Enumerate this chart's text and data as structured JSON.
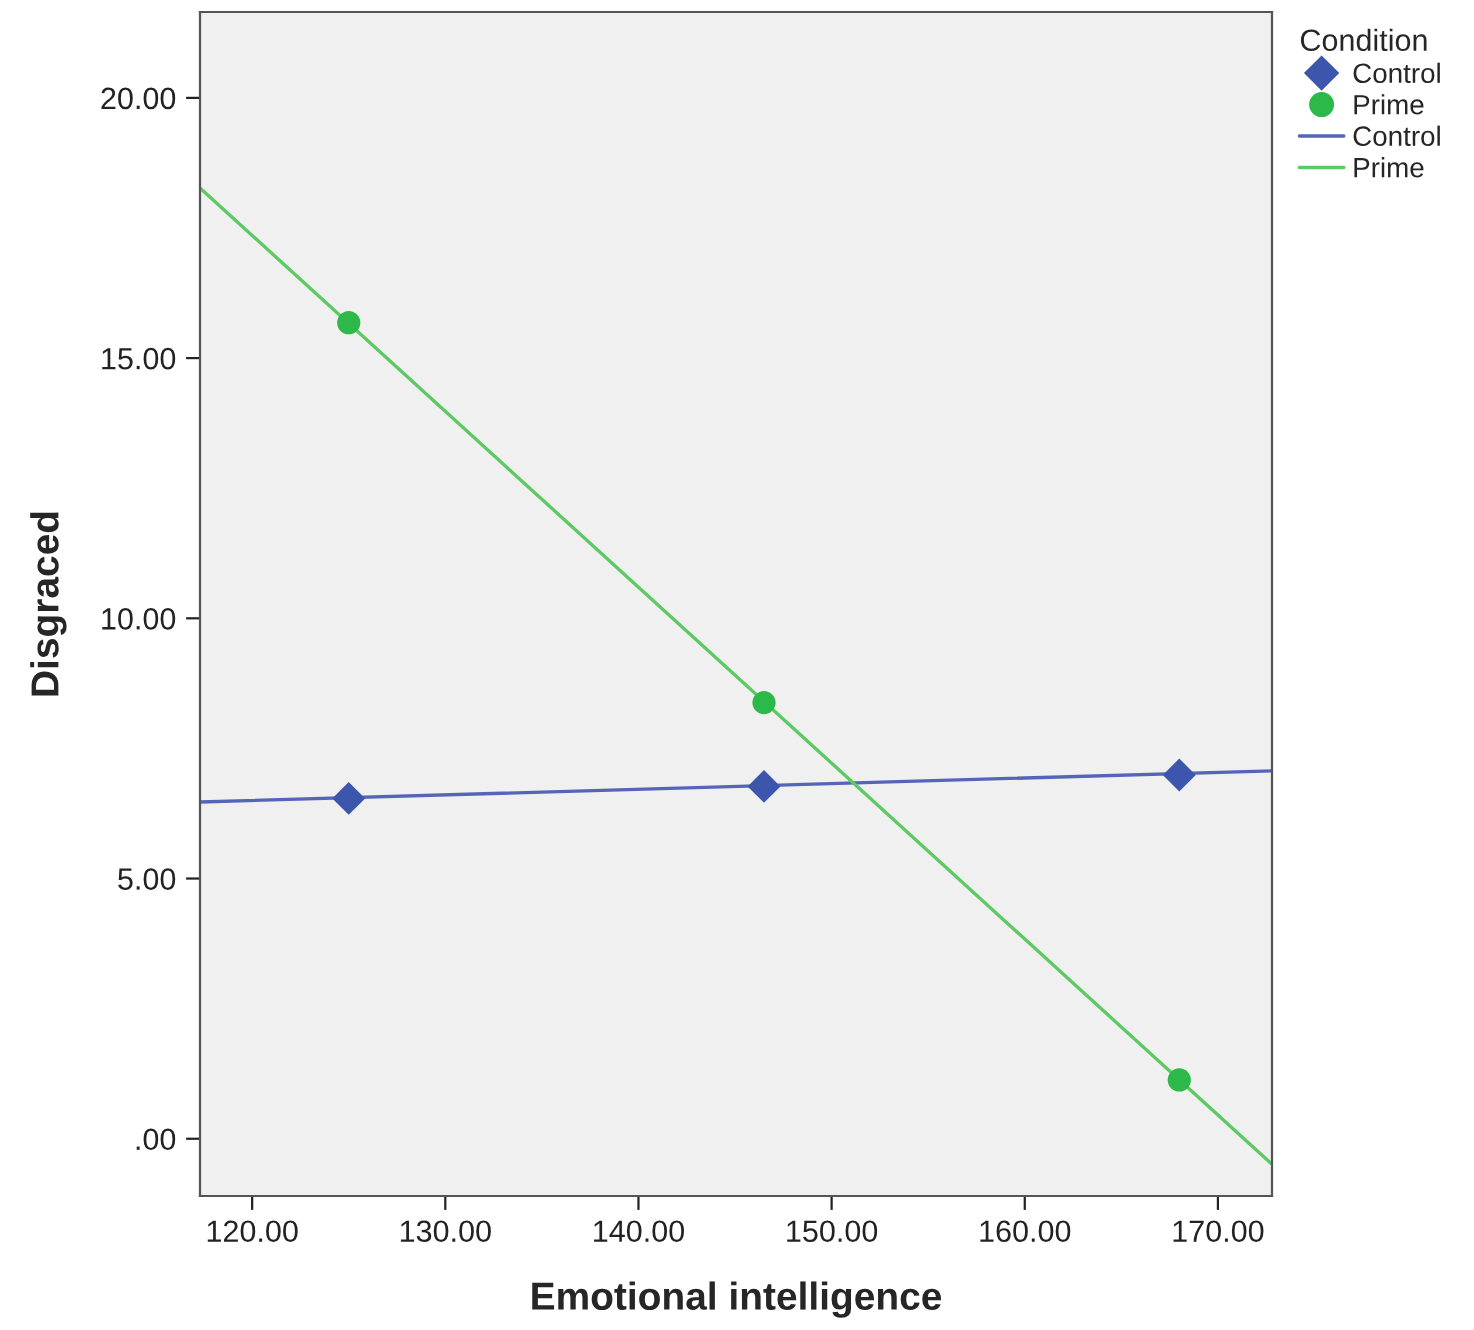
{
  "chart_data": {
    "type": "scatter",
    "xlabel": "Emotional intelligence",
    "ylabel": "Disgraced",
    "legend_title": "Condition",
    "legend": "right",
    "xlim": [
      117.3,
      172.8
    ],
    "ylim": [
      -1.1,
      21.65
    ],
    "xticks": [
      {
        "value": 120,
        "label": "120.00"
      },
      {
        "value": 130,
        "label": "130.00"
      },
      {
        "value": 140,
        "label": "140.00"
      },
      {
        "value": 150,
        "label": "150.00"
      },
      {
        "value": 160,
        "label": "160.00"
      },
      {
        "value": 170,
        "label": "170.00"
      }
    ],
    "yticks": [
      {
        "value": 0,
        "label": ".00"
      },
      {
        "value": 5,
        "label": "5.00"
      },
      {
        "value": 10,
        "label": "10.00"
      },
      {
        "value": 15,
        "label": "15.00"
      },
      {
        "value": 20,
        "label": "20.00"
      }
    ],
    "grid": false,
    "series": [
      {
        "name": "Control",
        "marker": "diamond",
        "color": "#3d56ad",
        "x": [
          125,
          146.5,
          168
        ],
        "values": [
          6.54,
          6.77,
          6.99
        ]
      },
      {
        "name": "Prime",
        "marker": "circle",
        "color": "#2db84a",
        "x": [
          125,
          146.5,
          168
        ],
        "values": [
          15.68,
          8.38,
          1.13
        ]
      },
      {
        "name": "Control",
        "type": "line",
        "marker": "none",
        "color": "#5465b8",
        "x": [
          117.3,
          172.8
        ],
        "values": [
          6.47,
          7.07
        ]
      },
      {
        "name": "Prime",
        "type": "line",
        "marker": "none",
        "color": "#5cc963",
        "x": [
          117.3,
          172.8
        ],
        "values": [
          18.27,
          -0.49
        ]
      }
    ]
  }
}
